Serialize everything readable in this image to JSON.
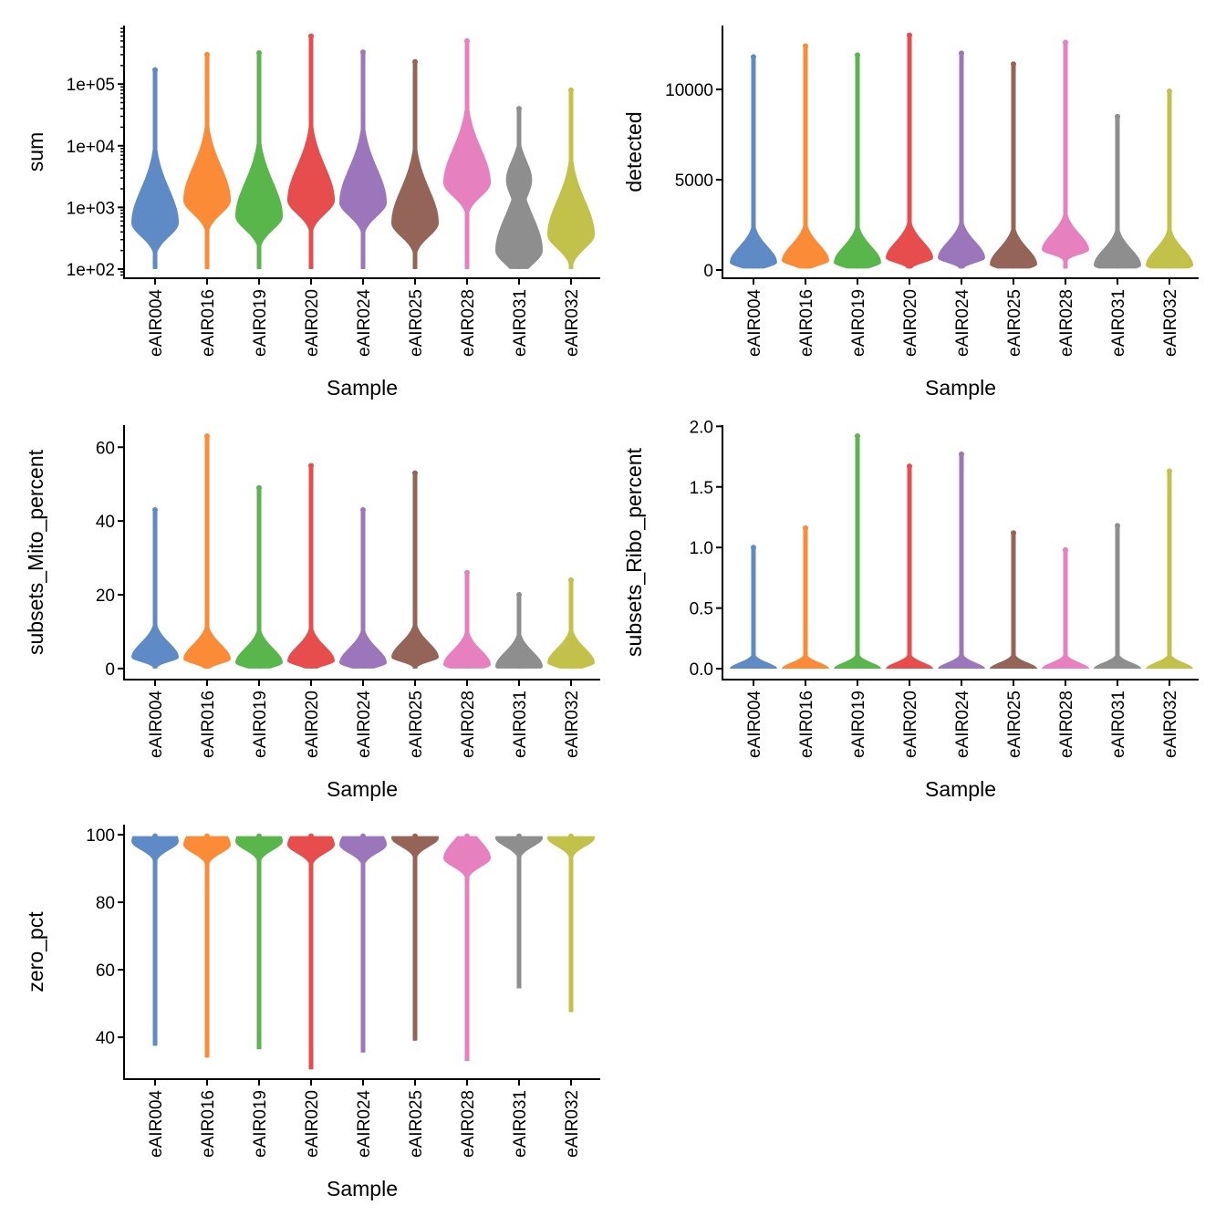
{
  "chart_data": [
    {
      "type": "violin",
      "xlabel": "Sample",
      "ylabel": "sum",
      "yscale": "log10",
      "ylim": [
        71,
        890000
      ],
      "yticks": [
        100,
        1000,
        10000,
        100000
      ],
      "ytick_labels": [
        "1e+02",
        "1e+03",
        "1e+04",
        "1e+05"
      ],
      "categories": [
        "eAIR004",
        "eAIR016",
        "eAIR019",
        "eAIR020",
        "eAIR024",
        "eAIR025",
        "eAIR028",
        "eAIR031",
        "eAIR032"
      ],
      "min": [
        100,
        100,
        100,
        100,
        100,
        100,
        100,
        100,
        100
      ],
      "max": [
        170000,
        300000,
        320000,
        600000,
        330000,
        230000,
        500000,
        40000,
        80000
      ],
      "mode": [
        560,
        1300,
        720,
        1300,
        1200,
        560,
        2500,
        200,
        360
      ]
    },
    {
      "type": "violin",
      "xlabel": "Sample",
      "ylabel": "detected",
      "yscale": "linear",
      "ylim": [
        -455,
        13535
      ],
      "yticks": [
        0,
        5000,
        10000
      ],
      "ytick_labels": [
        "0",
        "5000",
        "10000"
      ],
      "categories": [
        "eAIR004",
        "eAIR016",
        "eAIR019",
        "eAIR020",
        "eAIR024",
        "eAIR025",
        "eAIR028",
        "eAIR031",
        "eAIR032"
      ],
      "min": [
        80,
        80,
        80,
        80,
        80,
        80,
        80,
        80,
        80
      ],
      "max": [
        11800,
        12400,
        11900,
        13000,
        12000,
        11400,
        12600,
        8500,
        9900
      ],
      "mode": [
        400,
        500,
        400,
        650,
        650,
        300,
        1100,
        250,
        250
      ]
    },
    {
      "type": "violin",
      "xlabel": "Sample",
      "ylabel": "subsets_Mito_percent",
      "yscale": "linear",
      "ylim": [
        -3,
        66
      ],
      "yticks": [
        0,
        20,
        40,
        60
      ],
      "ytick_labels": [
        "0",
        "20",
        "40",
        "60"
      ],
      "categories": [
        "eAIR004",
        "eAIR016",
        "eAIR019",
        "eAIR020",
        "eAIR024",
        "eAIR025",
        "eAIR028",
        "eAIR031",
        "eAIR032"
      ],
      "min": [
        0,
        0,
        0,
        0,
        0,
        0,
        0,
        0,
        0
      ],
      "max": [
        43,
        63,
        49,
        55,
        43,
        53,
        26,
        20,
        24
      ],
      "mode": [
        3,
        2.5,
        1.5,
        2,
        1.5,
        3,
        1,
        0.5,
        1.5
      ]
    },
    {
      "type": "violin",
      "xlabel": "Sample",
      "ylabel": "subsets_Ribo_percent",
      "yscale": "linear",
      "ylim": [
        -0.09,
        2.01
      ],
      "yticks": [
        0,
        0.5,
        1,
        1.5,
        2
      ],
      "ytick_labels": [
        "0.0",
        "0.5",
        "1.0",
        "1.5",
        "2.0"
      ],
      "categories": [
        "eAIR004",
        "eAIR016",
        "eAIR019",
        "eAIR020",
        "eAIR024",
        "eAIR025",
        "eAIR028",
        "eAIR031",
        "eAIR032"
      ],
      "min": [
        0,
        0,
        0,
        0,
        0,
        0,
        0,
        0,
        0
      ],
      "max": [
        1.0,
        1.16,
        1.92,
        1.67,
        1.77,
        1.12,
        0.98,
        1.18,
        1.63
      ],
      "mode": [
        0,
        0,
        0,
        0,
        0,
        0,
        0,
        0,
        0
      ]
    },
    {
      "type": "violin",
      "xlabel": "Sample",
      "ylabel": "zero_pct",
      "yscale": "linear",
      "ylim": [
        27.6,
        103
      ],
      "yticks": [
        40,
        60,
        80,
        100
      ],
      "ytick_labels": [
        "40",
        "60",
        "80",
        "100"
      ],
      "categories": [
        "eAIR004",
        "eAIR016",
        "eAIR019",
        "eAIR020",
        "eAIR024",
        "eAIR025",
        "eAIR028",
        "eAIR031",
        "eAIR032"
      ],
      "min": [
        37.5,
        34,
        36.5,
        30.5,
        35.5,
        39,
        33,
        54.5,
        47.5
      ],
      "max": [
        99.6,
        99.6,
        99.6,
        99.6,
        99.6,
        99.6,
        99.6,
        99.6,
        99.6
      ],
      "mode": [
        98,
        97,
        98,
        97,
        97,
        99,
        93,
        99,
        99
      ]
    }
  ],
  "colors": [
    "#5E8BC5",
    "#FB8B36",
    "#58B64B",
    "#E64D4C",
    "#9B76BB",
    "#956459",
    "#E680BE",
    "#8E8E8E",
    "#C2C24A"
  ]
}
